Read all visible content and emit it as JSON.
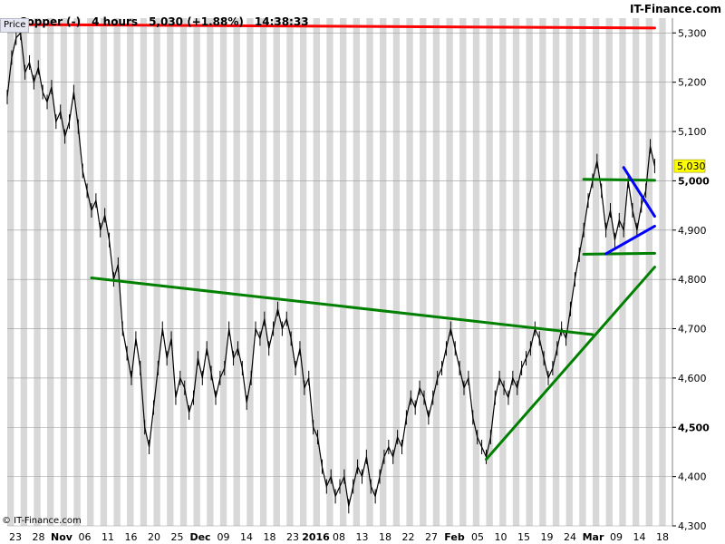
{
  "header": {
    "symbol": "Copper (-)",
    "timeframe": "4 hours",
    "quote": "5,030 (+1.88%)",
    "time": "14:38:33",
    "brand": "IT-Finance.com"
  },
  "price_tab": "Price",
  "copyright": "© IT-Finance.com",
  "colors": {
    "resistance": "#ff0000",
    "trend": "#008000",
    "wedge": "#0000ff",
    "band": "#d8d8d8",
    "price": "#000000",
    "last_price_bg": "#ffff00"
  },
  "chart_data": {
    "type": "line",
    "title": "Copper (-)",
    "ylim": [
      4300,
      5330
    ],
    "x_index_range": [
      0,
      150
    ],
    "grid": true,
    "y_ticks": [
      {
        "value": 5300,
        "label": "5,300",
        "bold": false
      },
      {
        "value": 5200,
        "label": "5,200",
        "bold": false
      },
      {
        "value": 5100,
        "label": "5,100",
        "bold": false
      },
      {
        "value": 5000,
        "label": "5,000",
        "bold": true
      },
      {
        "value": 4900,
        "label": "4,900",
        "bold": false
      },
      {
        "value": 4800,
        "label": "4,800",
        "bold": false
      },
      {
        "value": 4700,
        "label": "4,700",
        "bold": false
      },
      {
        "value": 4600,
        "label": "4,600",
        "bold": false
      },
      {
        "value": 4500,
        "label": "4,500",
        "bold": true
      },
      {
        "value": 4400,
        "label": "4,400",
        "bold": false
      },
      {
        "value": 4300,
        "label": "4,300",
        "bold": false
      }
    ],
    "x_ticks": [
      {
        "label": "23",
        "bold": false
      },
      {
        "label": "28",
        "bold": false
      },
      {
        "label": "Nov",
        "bold": true
      },
      {
        "label": "06",
        "bold": false
      },
      {
        "label": "11",
        "bold": false
      },
      {
        "label": "16",
        "bold": false
      },
      {
        "label": "20",
        "bold": false
      },
      {
        "label": "25",
        "bold": false
      },
      {
        "label": "Dec",
        "bold": true
      },
      {
        "label": "09",
        "bold": false
      },
      {
        "label": "14",
        "bold": false
      },
      {
        "label": "18",
        "bold": false
      },
      {
        "label": "23",
        "bold": false
      },
      {
        "label": "2016",
        "bold": true
      },
      {
        "label": "08",
        "bold": false
      },
      {
        "label": "13",
        "bold": false
      },
      {
        "label": "18",
        "bold": false
      },
      {
        "label": "22",
        "bold": false
      },
      {
        "label": "27",
        "bold": false
      },
      {
        "label": "Feb",
        "bold": true
      },
      {
        "label": "05",
        "bold": false
      },
      {
        "label": "10",
        "bold": false
      },
      {
        "label": "15",
        "bold": false
      },
      {
        "label": "19",
        "bold": false
      },
      {
        "label": "24",
        "bold": false
      },
      {
        "label": "Mar",
        "bold": true
      },
      {
        "label": "09",
        "bold": false
      },
      {
        "label": "14",
        "bold": false
      },
      {
        "label": "18",
        "bold": false
      }
    ],
    "last_price": {
      "value": 5030,
      "label": "5,030"
    },
    "series": [
      {
        "values": [
          [
            0,
            5170
          ],
          [
            1,
            5250
          ],
          [
            2,
            5290
          ],
          [
            3,
            5300
          ],
          [
            4,
            5220
          ],
          [
            5,
            5240
          ],
          [
            6,
            5200
          ],
          [
            7,
            5230
          ],
          [
            8,
            5180
          ],
          [
            9,
            5160
          ],
          [
            10,
            5190
          ],
          [
            11,
            5120
          ],
          [
            12,
            5140
          ],
          [
            13,
            5090
          ],
          [
            14,
            5120
          ],
          [
            15,
            5180
          ],
          [
            16,
            5110
          ],
          [
            17,
            5020
          ],
          [
            18,
            4980
          ],
          [
            19,
            4940
          ],
          [
            20,
            4960
          ],
          [
            21,
            4900
          ],
          [
            22,
            4930
          ],
          [
            23,
            4880
          ],
          [
            24,
            4800
          ],
          [
            25,
            4830
          ],
          [
            26,
            4700
          ],
          [
            27,
            4650
          ],
          [
            28,
            4600
          ],
          [
            29,
            4680
          ],
          [
            30,
            4620
          ],
          [
            31,
            4500
          ],
          [
            32,
            4460
          ],
          [
            33,
            4540
          ],
          [
            34,
            4620
          ],
          [
            35,
            4700
          ],
          [
            36,
            4640
          ],
          [
            37,
            4680
          ],
          [
            38,
            4560
          ],
          [
            39,
            4600
          ],
          [
            40,
            4580
          ],
          [
            41,
            4530
          ],
          [
            42,
            4560
          ],
          [
            43,
            4640
          ],
          [
            44,
            4600
          ],
          [
            45,
            4660
          ],
          [
            46,
            4610
          ],
          [
            47,
            4560
          ],
          [
            48,
            4600
          ],
          [
            49,
            4620
          ],
          [
            50,
            4700
          ],
          [
            51,
            4640
          ],
          [
            52,
            4660
          ],
          [
            53,
            4620
          ],
          [
            54,
            4550
          ],
          [
            55,
            4600
          ],
          [
            56,
            4700
          ],
          [
            57,
            4680
          ],
          [
            58,
            4720
          ],
          [
            59,
            4660
          ],
          [
            60,
            4700
          ],
          [
            61,
            4740
          ],
          [
            62,
            4700
          ],
          [
            63,
            4720
          ],
          [
            64,
            4680
          ],
          [
            65,
            4620
          ],
          [
            66,
            4660
          ],
          [
            67,
            4580
          ],
          [
            68,
            4600
          ],
          [
            69,
            4500
          ],
          [
            70,
            4480
          ],
          [
            71,
            4420
          ],
          [
            72,
            4380
          ],
          [
            73,
            4400
          ],
          [
            74,
            4360
          ],
          [
            75,
            4380
          ],
          [
            76,
            4400
          ],
          [
            77,
            4340
          ],
          [
            78,
            4380
          ],
          [
            79,
            4420
          ],
          [
            80,
            4400
          ],
          [
            81,
            4440
          ],
          [
            82,
            4380
          ],
          [
            83,
            4360
          ],
          [
            84,
            4400
          ],
          [
            85,
            4440
          ],
          [
            86,
            4460
          ],
          [
            87,
            4440
          ],
          [
            88,
            4480
          ],
          [
            89,
            4460
          ],
          [
            90,
            4520
          ],
          [
            91,
            4560
          ],
          [
            92,
            4540
          ],
          [
            93,
            4580
          ],
          [
            94,
            4560
          ],
          [
            95,
            4520
          ],
          [
            96,
            4560
          ],
          [
            97,
            4600
          ],
          [
            98,
            4620
          ],
          [
            99,
            4660
          ],
          [
            100,
            4700
          ],
          [
            101,
            4660
          ],
          [
            102,
            4620
          ],
          [
            103,
            4580
          ],
          [
            104,
            4600
          ],
          [
            105,
            4520
          ],
          [
            106,
            4480
          ],
          [
            107,
            4460
          ],
          [
            108,
            4440
          ],
          [
            109,
            4480
          ],
          [
            110,
            4560
          ],
          [
            111,
            4600
          ],
          [
            112,
            4580
          ],
          [
            113,
            4560
          ],
          [
            114,
            4600
          ],
          [
            115,
            4580
          ],
          [
            116,
            4620
          ],
          [
            117,
            4640
          ],
          [
            118,
            4660
          ],
          [
            119,
            4700
          ],
          [
            120,
            4680
          ],
          [
            121,
            4640
          ],
          [
            122,
            4600
          ],
          [
            123,
            4620
          ],
          [
            124,
            4660
          ],
          [
            125,
            4700
          ],
          [
            126,
            4680
          ],
          [
            127,
            4740
          ],
          [
            128,
            4800
          ],
          [
            129,
            4850
          ],
          [
            130,
            4900
          ],
          [
            131,
            4960
          ],
          [
            132,
            5000
          ],
          [
            133,
            5040
          ],
          [
            134,
            4980
          ],
          [
            135,
            4900
          ],
          [
            136,
            4940
          ],
          [
            137,
            4880
          ],
          [
            138,
            4920
          ],
          [
            139,
            4900
          ],
          [
            140,
            5000
          ],
          [
            141,
            4940
          ],
          [
            142,
            4900
          ],
          [
            143,
            4950
          ],
          [
            144,
            4980
          ],
          [
            145,
            5070
          ],
          [
            146,
            5030
          ]
        ]
      }
    ],
    "lines": [
      {
        "name": "resistance",
        "color": "#ff0000",
        "from": [
          3,
          5317
        ],
        "to": [
          146,
          5310
        ]
      },
      {
        "name": "trendline-long",
        "color": "#008000",
        "from": [
          19,
          4803
        ],
        "to": [
          132,
          4688
        ]
      },
      {
        "name": "support-rising",
        "color": "#008000",
        "from": [
          108,
          4435
        ],
        "to": [
          146,
          4825
        ]
      },
      {
        "name": "horizontal-5000",
        "color": "#008000",
        "from": [
          130,
          5003
        ],
        "to": [
          146,
          5001
        ]
      },
      {
        "name": "horizontal-4850",
        "color": "#008000",
        "from": [
          130,
          4851
        ],
        "to": [
          146,
          4853
        ]
      },
      {
        "name": "wedge-upper",
        "color": "#0000ff",
        "from": [
          139,
          5027
        ],
        "to": [
          146,
          4928
        ]
      },
      {
        "name": "wedge-lower",
        "color": "#0000ff",
        "from": [
          135,
          4852
        ],
        "to": [
          146,
          4908
        ]
      }
    ]
  }
}
